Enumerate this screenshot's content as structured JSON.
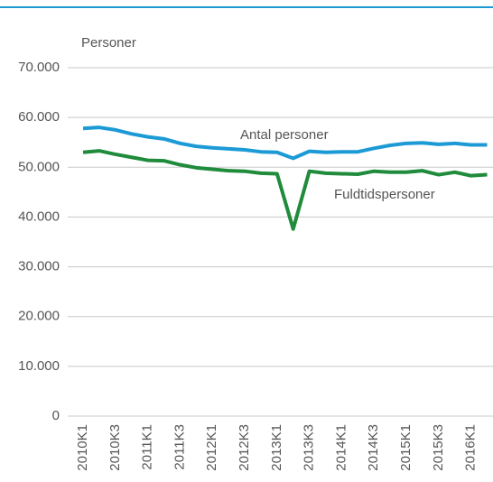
{
  "chart_data": {
    "type": "line",
    "y_label": "Personer",
    "categories": [
      "2010K1",
      null,
      "2010K3",
      null,
      "2011K1",
      null,
      "2011K3",
      null,
      "2012K1",
      null,
      "2012K3",
      null,
      "2013K1",
      null,
      "2013K3",
      null,
      "2014K1",
      null,
      "2014K3",
      null,
      "2015K1",
      null,
      "2015K3",
      null,
      "2016K1",
      null
    ],
    "series": [
      {
        "name": "Antal personer",
        "color": "#1c9ad6",
        "values": [
          57800,
          58000,
          57500,
          56700,
          56100,
          55700,
          54800,
          54200,
          53900,
          53700,
          53500,
          53100,
          53000,
          51800,
          53200,
          53000,
          53100,
          53100,
          53800,
          54400,
          54800,
          54900,
          54600,
          54800,
          54500,
          54500
        ]
      },
      {
        "name": "Fuldtidspersoner",
        "color": "#1f8b3b",
        "values": [
          53000,
          53300,
          52600,
          52000,
          51400,
          51300,
          50500,
          49900,
          49600,
          49300,
          49200,
          48800,
          48700,
          37600,
          49200,
          48800,
          48700,
          48600,
          49200,
          49000,
          49000,
          49300,
          48500,
          49000,
          48300,
          48500
        ]
      }
    ],
    "ylim": [
      0,
      70000
    ],
    "yticks": [
      0,
      {
        "value": 10000,
        "label": "10.000"
      },
      {
        "value": 20000,
        "label": "20.000"
      },
      {
        "value": 30000,
        "label": "30.000"
      },
      {
        "value": 40000,
        "label": "40.000"
      },
      {
        "value": 50000,
        "label": "50.000"
      },
      {
        "value": 60000,
        "label": "60.000"
      },
      {
        "value": 70000,
        "label": "70.000"
      }
    ],
    "grid": true
  }
}
